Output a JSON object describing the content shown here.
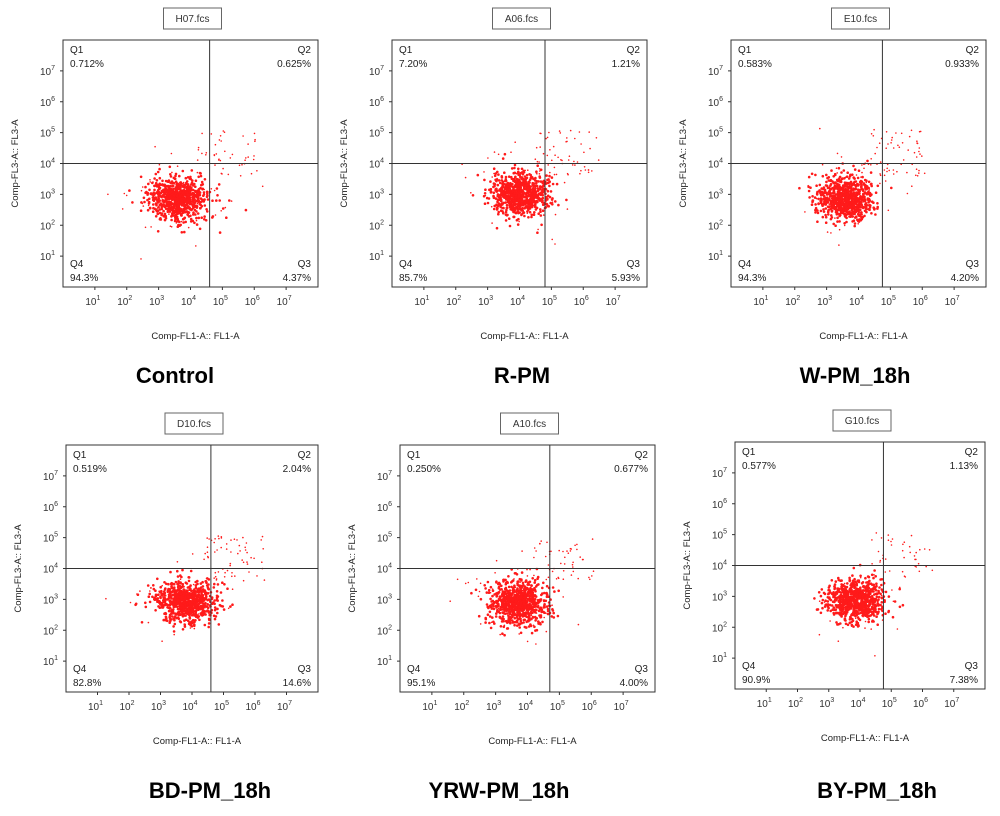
{
  "figure": {
    "description_type": "flow cytometry quadrant dot plots"
  },
  "colors": {
    "dots": "#ff1a1a",
    "gate_lines": "#333333",
    "axes": "#333333",
    "text": "#222222"
  },
  "chart_data": [
    {
      "type": "scatter",
      "file_label": "H07.fcs",
      "panel_title": "Control",
      "xlabel": "Comp-FL1-A:: FL1-A",
      "ylabel": "Comp-FL3-A:: FL3-A",
      "xscale": "log",
      "yscale": "log",
      "xlim": [
        1,
        100000000
      ],
      "ylim": [
        1,
        100000000
      ],
      "x_ticks": [
        "1",
        "2",
        "3",
        "4",
        "5",
        "6",
        "7"
      ],
      "y_ticks": [
        "1",
        "2",
        "3",
        "4",
        "5",
        "6",
        "7"
      ],
      "tick_base": "10",
      "gate": {
        "x_log": 4.6,
        "y_log": 4.0
      },
      "cluster": {
        "center_x_log": 3.6,
        "center_y_log": 2.85,
        "spread_x": 0.45,
        "spread_y": 0.35,
        "n_points": 900
      },
      "quadrants": [
        {
          "name": "Q1",
          "value": "0.712%"
        },
        {
          "name": "Q2",
          "value": "0.625%"
        },
        {
          "name": "Q3",
          "value": "4.37%"
        },
        {
          "name": "Q4",
          "value": "94.3%"
        }
      ]
    },
    {
      "type": "scatter",
      "file_label": "A06.fcs",
      "panel_title": "R-PM",
      "xlabel": "Comp-FL1-A:: FL1-A",
      "ylabel": "Comp-FL3-A:: FL3-A",
      "xscale": "log",
      "yscale": "log",
      "xlim": [
        1,
        100000000
      ],
      "ylim": [
        1,
        100000000
      ],
      "x_ticks": [
        "1",
        "2",
        "3",
        "4",
        "5",
        "6",
        "7"
      ],
      "y_ticks": [
        "1",
        "2",
        "3",
        "4",
        "5",
        "6",
        "7"
      ],
      "tick_base": "10",
      "gate": {
        "x_log": 4.8,
        "y_log": 4.0
      },
      "cluster": {
        "center_x_log": 4.0,
        "center_y_log": 3.0,
        "spread_x": 0.45,
        "spread_y": 0.35,
        "n_points": 900
      },
      "quadrants": [
        {
          "name": "Q1",
          "value": "7.20%"
        },
        {
          "name": "Q2",
          "value": "1.21%"
        },
        {
          "name": "Q3",
          "value": "5.93%"
        },
        {
          "name": "Q4",
          "value": "85.7%"
        }
      ]
    },
    {
      "type": "scatter",
      "file_label": "E10.fcs",
      "panel_title": "W-PM_18h",
      "xlabel": "Comp-FL1-A:: FL1-A",
      "ylabel": "Comp-FL3-A:: FL3-A",
      "xscale": "log",
      "yscale": "log",
      "xlim": [
        1,
        100000000
      ],
      "ylim": [
        1,
        100000000
      ],
      "x_ticks": [
        "1",
        "2",
        "3",
        "4",
        "5",
        "6",
        "7"
      ],
      "y_ticks": [
        "1",
        "2",
        "3",
        "4",
        "5",
        "6",
        "7"
      ],
      "tick_base": "10",
      "gate": {
        "x_log": 4.75,
        "y_log": 4.0
      },
      "cluster": {
        "center_x_log": 3.6,
        "center_y_log": 2.85,
        "spread_x": 0.45,
        "spread_y": 0.35,
        "n_points": 900
      },
      "quadrants": [
        {
          "name": "Q1",
          "value": "0.583%"
        },
        {
          "name": "Q2",
          "value": "0.933%"
        },
        {
          "name": "Q3",
          "value": "4.20%"
        },
        {
          "name": "Q4",
          "value": "94.3%"
        }
      ]
    },
    {
      "type": "scatter",
      "file_label": "D10.fcs",
      "panel_title": "BD-PM_18h",
      "xlabel": "Comp-FL1-A:: FL1-A",
      "ylabel": "Comp-FL3-A:: FL3-A",
      "xscale": "log",
      "yscale": "log",
      "xlim": [
        1,
        100000000
      ],
      "ylim": [
        1,
        100000000
      ],
      "x_ticks": [
        "1",
        "2",
        "3",
        "4",
        "5",
        "6",
        "7"
      ],
      "y_ticks": [
        "1",
        "2",
        "3",
        "4",
        "5",
        "6",
        "7"
      ],
      "tick_base": "10",
      "gate": {
        "x_log": 4.6,
        "y_log": 4.0
      },
      "cluster": {
        "center_x_log": 3.8,
        "center_y_log": 2.95,
        "spread_x": 0.5,
        "spread_y": 0.35,
        "n_points": 900
      },
      "quadrants": [
        {
          "name": "Q1",
          "value": "0.519%"
        },
        {
          "name": "Q2",
          "value": "2.04%"
        },
        {
          "name": "Q3",
          "value": "14.6%"
        },
        {
          "name": "Q4",
          "value": "82.8%"
        }
      ]
    },
    {
      "type": "scatter",
      "file_label": "A10.fcs",
      "panel_title": "YRW-PM_18h",
      "xlabel": "Comp-FL1-A:: FL1-A",
      "ylabel": "Comp-FL3-A:: FL3-A",
      "xscale": "log",
      "yscale": "log",
      "xlim": [
        1,
        100000000
      ],
      "ylim": [
        1,
        100000000
      ],
      "x_ticks": [
        "1",
        "2",
        "3",
        "4",
        "5",
        "6",
        "7"
      ],
      "y_ticks": [
        "1",
        "2",
        "3",
        "4",
        "5",
        "6",
        "7"
      ],
      "tick_base": "10",
      "gate": {
        "x_log": 4.7,
        "y_log": 4.0
      },
      "cluster": {
        "center_x_log": 3.7,
        "center_y_log": 2.9,
        "spread_x": 0.45,
        "spread_y": 0.35,
        "n_points": 900
      },
      "quadrants": [
        {
          "name": "Q1",
          "value": "0.250%"
        },
        {
          "name": "Q2",
          "value": "0.677%"
        },
        {
          "name": "Q3",
          "value": "4.00%"
        },
        {
          "name": "Q4",
          "value": "95.1%"
        }
      ]
    },
    {
      "type": "scatter",
      "file_label": "G10.fcs",
      "panel_title": "BY-PM_18h",
      "xlabel": "Comp-FL1-A:: FL1-A",
      "ylabel": "Comp-FL3-A:: FL3-A",
      "xscale": "log",
      "yscale": "log",
      "xlim": [
        1,
        100000000
      ],
      "ylim": [
        1,
        100000000
      ],
      "x_ticks": [
        "1",
        "2",
        "3",
        "4",
        "5",
        "6",
        "7"
      ],
      "y_ticks": [
        "1",
        "2",
        "3",
        "4",
        "5",
        "6",
        "7"
      ],
      "tick_base": "10",
      "gate": {
        "x_log": 4.75,
        "y_log": 4.0
      },
      "cluster": {
        "center_x_log": 3.85,
        "center_y_log": 2.85,
        "spread_x": 0.45,
        "spread_y": 0.33,
        "n_points": 900
      },
      "quadrants": [
        {
          "name": "Q1",
          "value": "0.577%"
        },
        {
          "name": "Q2",
          "value": "1.13%"
        },
        {
          "name": "Q3",
          "value": "7.38%"
        },
        {
          "name": "Q4",
          "value": "90.9%"
        }
      ]
    }
  ]
}
